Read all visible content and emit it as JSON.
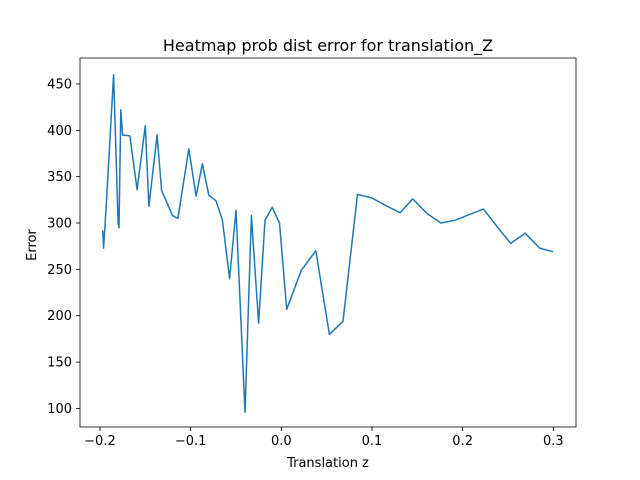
{
  "chart_data": {
    "type": "line",
    "title": "Heatmap prob dist error for translation_Z",
    "xlabel": "Translation z",
    "ylabel": "Error",
    "xlim": [
      -0.222,
      0.325
    ],
    "ylim": [
      80,
      478
    ],
    "x_ticks": [
      -0.2,
      -0.1,
      0.0,
      0.1,
      0.2,
      0.3
    ],
    "x_tick_labels": [
      "−0.2",
      "−0.1",
      "0.0",
      "0.1",
      "0.2",
      "0.3"
    ],
    "y_ticks": [
      100,
      150,
      200,
      250,
      300,
      350,
      400,
      450
    ],
    "y_tick_labels": [
      "100",
      "150",
      "200",
      "250",
      "300",
      "350",
      "400",
      "450"
    ],
    "grid": false,
    "line_color": "#1f77b4",
    "series": [
      {
        "x": [
          -0.197,
          -0.196,
          -0.193,
          -0.185,
          -0.18,
          -0.179,
          -0.177,
          -0.175,
          -0.167,
          -0.159,
          -0.15,
          -0.146,
          -0.137,
          -0.132,
          -0.12,
          -0.114,
          -0.102,
          -0.094,
          -0.087,
          -0.08,
          -0.072,
          -0.065,
          -0.057,
          -0.05,
          -0.04,
          -0.033,
          -0.025,
          -0.018,
          -0.01,
          -0.002,
          0.006,
          0.022,
          0.038,
          0.053,
          0.068,
          0.084,
          0.1,
          0.115,
          0.131,
          0.145,
          0.161,
          0.176,
          0.192,
          0.207,
          0.223,
          0.238,
          0.253,
          0.269,
          0.285,
          0.3
        ],
        "y": [
          292,
          273,
          320,
          460,
          300,
          295,
          422,
          395,
          394,
          336,
          405,
          318,
          395,
          335,
          308,
          305,
          380,
          329,
          364,
          330,
          324,
          303,
          240,
          314,
          96,
          308,
          192,
          303,
          317,
          300,
          207,
          249,
          270,
          180,
          194,
          331,
          327,
          319,
          311,
          326,
          310,
          300,
          303,
          309,
          315,
          296,
          278,
          289,
          273,
          269
        ]
      }
    ]
  }
}
